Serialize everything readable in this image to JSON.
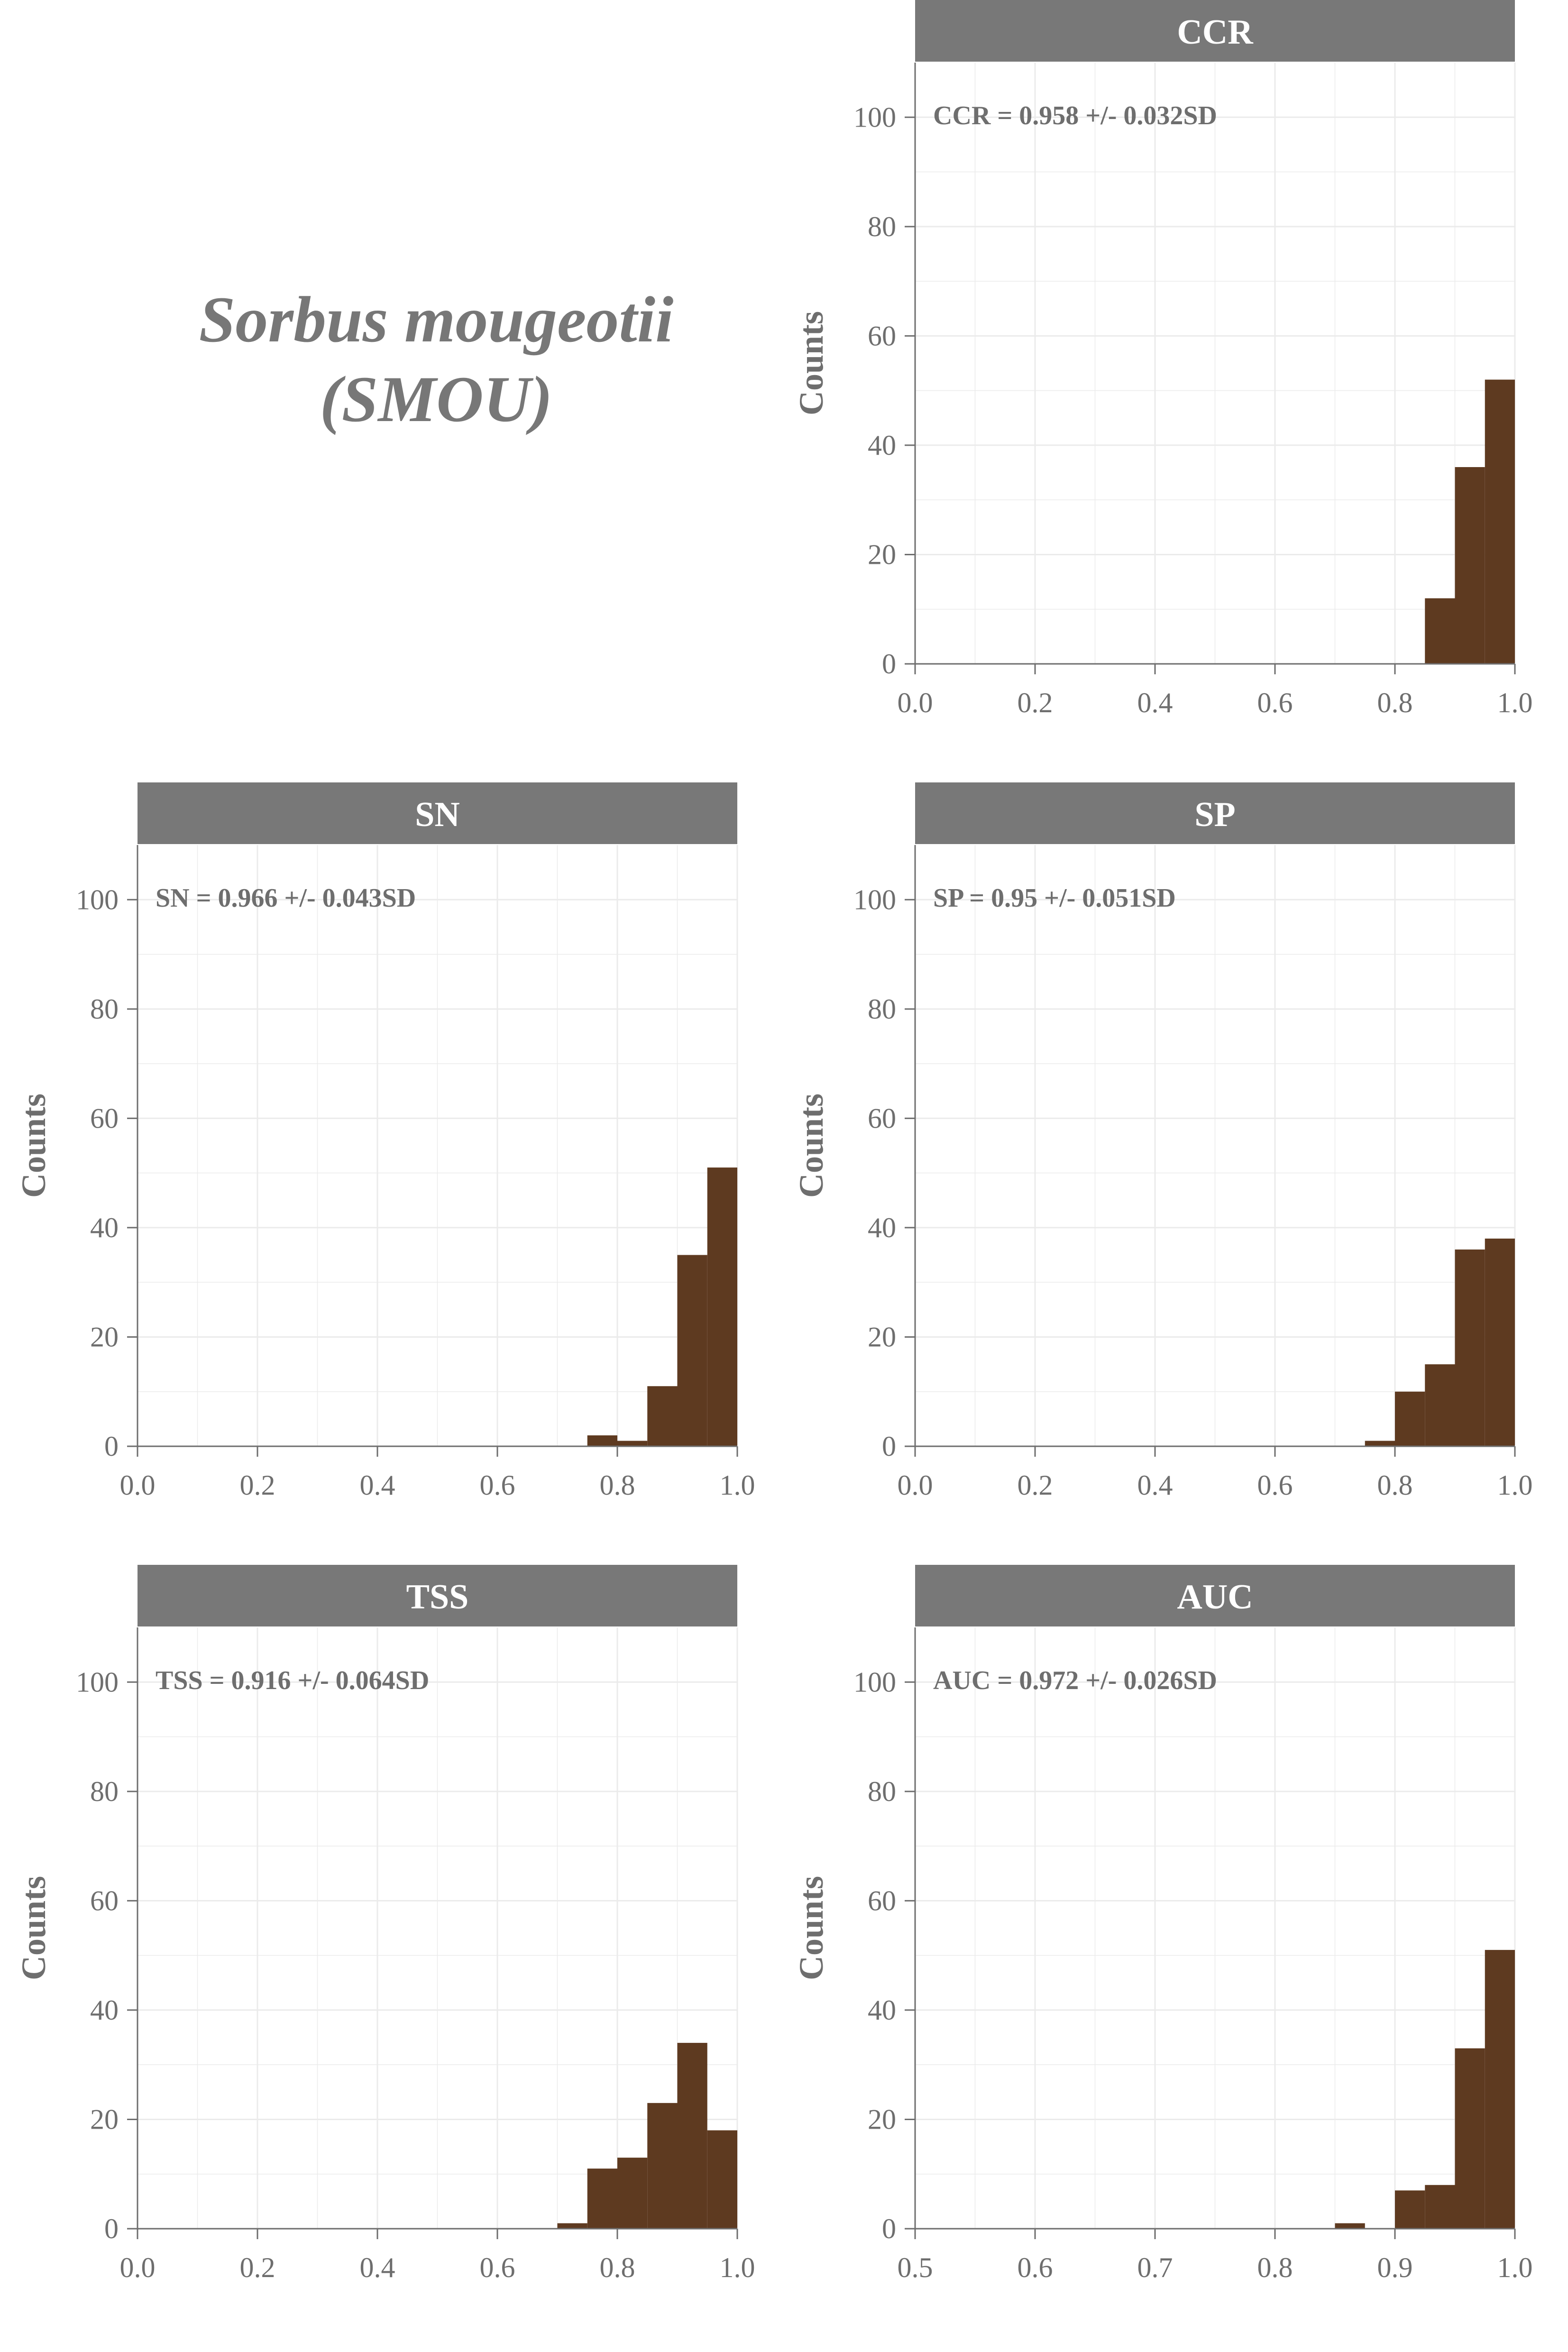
{
  "title": {
    "line1": "Sorbus mougeotii",
    "line2": "(SMOU)"
  },
  "colors": {
    "bar": "#5e3a20",
    "strip": "#787878",
    "grid": "#ebebeb",
    "axis": "#6e6e6e"
  },
  "chart_data": [
    {
      "type": "bar",
      "strip": "CCR",
      "annotation": "CCR = 0.958 +/- 0.032SD",
      "ylabel": "Counts",
      "xlim": [
        0,
        1
      ],
      "ylim": [
        0,
        110
      ],
      "xticks": [
        0,
        0.2,
        0.4,
        0.6,
        0.8,
        1.0
      ],
      "xtick_labels": [
        "0.0",
        "0.2",
        "0.4",
        "0.6",
        "0.8",
        "1.0"
      ],
      "yticks": [
        0,
        20,
        40,
        60,
        80,
        100
      ],
      "ytick_labels": [
        "0",
        "20",
        "40",
        "60",
        "80",
        "100"
      ],
      "bin_width": 0.05,
      "bins": [
        [
          0.85,
          12
        ],
        [
          0.9,
          36
        ],
        [
          0.95,
          52
        ]
      ]
    },
    {
      "type": "bar",
      "strip": "SN",
      "annotation": "SN = 0.966 +/- 0.043SD",
      "ylabel": "Counts",
      "xlim": [
        0,
        1
      ],
      "ylim": [
        0,
        110
      ],
      "xticks": [
        0,
        0.2,
        0.4,
        0.6,
        0.8,
        1.0
      ],
      "xtick_labels": [
        "0.0",
        "0.2",
        "0.4",
        "0.6",
        "0.8",
        "1.0"
      ],
      "yticks": [
        0,
        20,
        40,
        60,
        80,
        100
      ],
      "ytick_labels": [
        "0",
        "20",
        "40",
        "60",
        "80",
        "100"
      ],
      "bin_width": 0.05,
      "bins": [
        [
          0.75,
          2
        ],
        [
          0.8,
          1
        ],
        [
          0.85,
          11
        ],
        [
          0.9,
          35
        ],
        [
          0.95,
          51
        ]
      ]
    },
    {
      "type": "bar",
      "strip": "SP",
      "annotation": "SP = 0.95 +/- 0.051SD",
      "ylabel": "Counts",
      "xlim": [
        0,
        1
      ],
      "ylim": [
        0,
        110
      ],
      "xticks": [
        0,
        0.2,
        0.4,
        0.6,
        0.8,
        1.0
      ],
      "xtick_labels": [
        "0.0",
        "0.2",
        "0.4",
        "0.6",
        "0.8",
        "1.0"
      ],
      "yticks": [
        0,
        20,
        40,
        60,
        80,
        100
      ],
      "ytick_labels": [
        "0",
        "20",
        "40",
        "60",
        "80",
        "100"
      ],
      "bin_width": 0.05,
      "bins": [
        [
          0.75,
          1
        ],
        [
          0.8,
          10
        ],
        [
          0.85,
          15
        ],
        [
          0.9,
          36
        ],
        [
          0.95,
          38
        ]
      ]
    },
    {
      "type": "bar",
      "strip": "TSS",
      "annotation": "TSS = 0.916 +/- 0.064SD",
      "ylabel": "Counts",
      "xlim": [
        0,
        1
      ],
      "ylim": [
        0,
        110
      ],
      "xticks": [
        0,
        0.2,
        0.4,
        0.6,
        0.8,
        1.0
      ],
      "xtick_labels": [
        "0.0",
        "0.2",
        "0.4",
        "0.6",
        "0.8",
        "1.0"
      ],
      "yticks": [
        0,
        20,
        40,
        60,
        80,
        100
      ],
      "ytick_labels": [
        "0",
        "20",
        "40",
        "60",
        "80",
        "100"
      ],
      "bin_width": 0.05,
      "bins": [
        [
          0.7,
          1
        ],
        [
          0.75,
          11
        ],
        [
          0.8,
          13
        ],
        [
          0.85,
          23
        ],
        [
          0.9,
          34
        ],
        [
          0.95,
          18
        ]
      ]
    },
    {
      "type": "bar",
      "strip": "AUC",
      "annotation": "AUC = 0.972 +/- 0.026SD",
      "ylabel": "Counts",
      "xlim": [
        0.5,
        1
      ],
      "ylim": [
        0,
        110
      ],
      "xticks": [
        0.5,
        0.6,
        0.7,
        0.8,
        0.9,
        1.0
      ],
      "xtick_labels": [
        "0.5",
        "0.6",
        "0.7",
        "0.8",
        "0.9",
        "1.0"
      ],
      "yticks": [
        0,
        20,
        40,
        60,
        80,
        100
      ],
      "ytick_labels": [
        "0",
        "20",
        "40",
        "60",
        "80",
        "100"
      ],
      "bin_width": 0.025,
      "bins": [
        [
          0.85,
          1
        ],
        [
          0.9,
          7
        ],
        [
          0.925,
          8
        ],
        [
          0.95,
          33
        ],
        [
          0.975,
          51
        ]
      ]
    }
  ]
}
